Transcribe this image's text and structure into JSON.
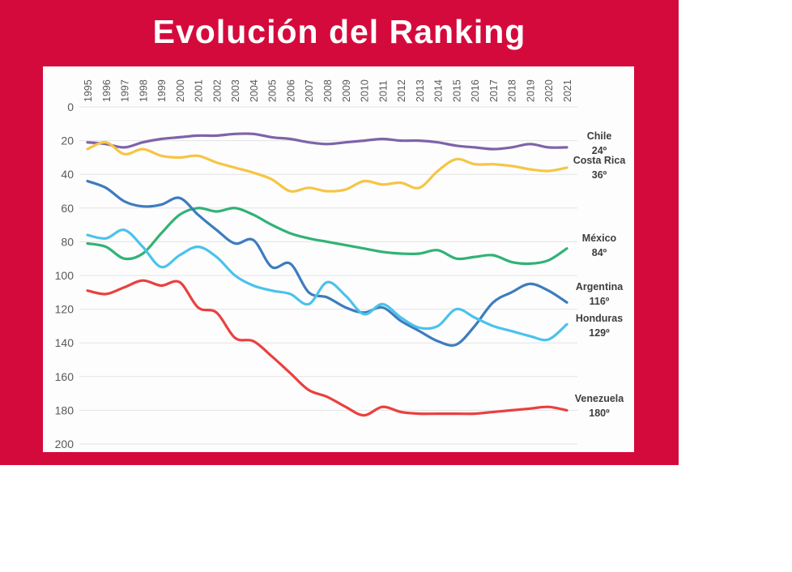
{
  "card": {
    "title": "Evolución del Ranking",
    "background_color": "#D50A3C",
    "title_color": "#ffffff"
  },
  "chart_data": {
    "type": "line",
    "title": "Evolución del Ranking",
    "x_tick_labels": [
      "1995",
      "1996",
      "1997",
      "1998",
      "1999",
      "2000",
      "2001",
      "2002",
      "2003",
      "2004",
      "2005",
      "2006",
      "2007",
      "2008",
      "2009",
      "2010",
      "2011",
      "2012",
      "2013",
      "2014",
      "2015",
      "2016",
      "2017",
      "2018",
      "2019",
      "2020",
      "2021"
    ],
    "y_axis": {
      "min": 0,
      "max": 200,
      "step": 20,
      "inverted": true,
      "ticks": [
        0,
        20,
        40,
        60,
        80,
        100,
        120,
        140,
        160,
        180,
        200
      ]
    },
    "grid": true,
    "gridline_color": "#E3E3E3",
    "axis_text_color": "#595959",
    "legend_position": "right",
    "series": [
      {
        "name": "Chile",
        "rank_label": "24º",
        "color": "#7E63A8",
        "values": [
          21,
          22,
          24,
          21,
          19,
          18,
          17,
          17,
          16,
          16,
          18,
          19,
          21,
          22,
          21,
          20,
          19,
          20,
          20,
          21,
          23,
          24,
          25,
          24,
          22,
          24,
          24
        ]
      },
      {
        "name": "Costa Rica",
        "rank_label": "36º",
        "color": "#F6C546",
        "values": [
          25,
          21,
          28,
          25,
          29,
          30,
          29,
          33,
          36,
          39,
          43,
          50,
          48,
          50,
          49,
          44,
          46,
          45,
          48,
          38,
          31,
          34,
          34,
          35,
          37,
          38,
          36
        ]
      },
      {
        "name": "México",
        "rank_label": "84º",
        "color": "#31B276",
        "values": [
          81,
          83,
          90,
          87,
          75,
          64,
          60,
          62,
          60,
          64,
          70,
          75,
          78,
          80,
          82,
          84,
          86,
          87,
          87,
          85,
          90,
          89,
          88,
          92,
          93,
          91,
          84
        ]
      },
      {
        "name": "Argentina",
        "rank_label": "116º",
        "color": "#3D7CBE",
        "values": [
          44,
          48,
          56,
          59,
          58,
          54,
          64,
          73,
          81,
          79,
          95,
          93,
          110,
          113,
          119,
          122,
          119,
          127,
          133,
          139,
          141,
          130,
          116,
          110,
          105,
          109,
          116
        ]
      },
      {
        "name": "Honduras",
        "rank_label": "129º",
        "color": "#4BC2EC",
        "values": [
          76,
          78,
          73,
          83,
          95,
          88,
          83,
          89,
          100,
          106,
          109,
          111,
          117,
          104,
          112,
          123,
          117,
          125,
          131,
          130,
          120,
          125,
          130,
          133,
          136,
          138,
          129
        ]
      },
      {
        "name": "Venezuela",
        "rank_label": "180º",
        "color": "#E9403F",
        "values": [
          109,
          111,
          107,
          103,
          106,
          104,
          119,
          122,
          137,
          139,
          148,
          158,
          168,
          172,
          178,
          183,
          178,
          181,
          182,
          182,
          182,
          182,
          181,
          180,
          179,
          178,
          180
        ]
      }
    ]
  }
}
